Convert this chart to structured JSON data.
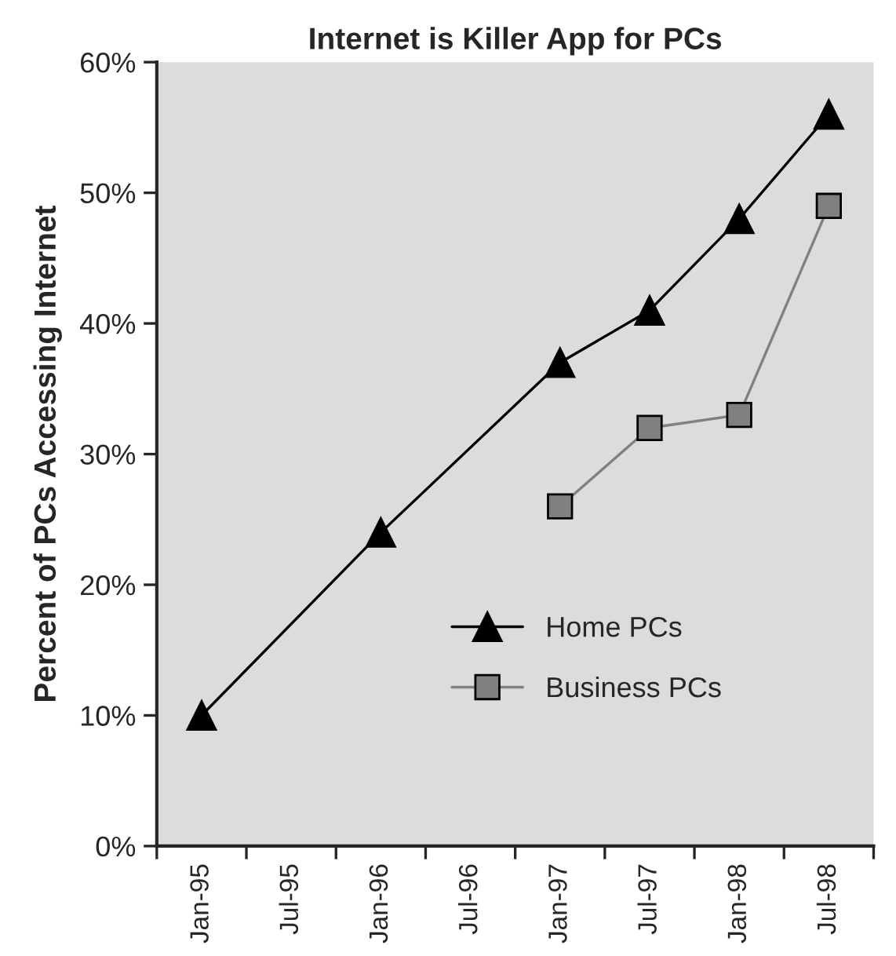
{
  "chart_data": {
    "type": "line",
    "title": "Internet is Killer App for PCs",
    "ylabel": "Percent of PCs Accessing Internet",
    "categories": [
      "Jan-95",
      "Jul-95",
      "Jan-96",
      "Jul-96",
      "Jan-97",
      "Jul-97",
      "Jan-98",
      "Jul-98"
    ],
    "series": [
      {
        "name": "Home PCs",
        "color": "#000000",
        "marker": "triangle",
        "values": [
          10,
          null,
          24,
          null,
          37,
          41,
          48,
          56
        ]
      },
      {
        "name": "Business PCs",
        "color": "#808080",
        "marker": "square",
        "values": [
          null,
          null,
          null,
          null,
          26,
          32,
          33,
          49
        ]
      }
    ],
    "ylim": [
      0,
      60
    ],
    "yticks": [
      {
        "value": 0,
        "label": "0%"
      },
      {
        "value": 10,
        "label": "10%"
      },
      {
        "value": 20,
        "label": "20%"
      },
      {
        "value": 30,
        "label": "30%"
      },
      {
        "value": 40,
        "label": "40%"
      },
      {
        "value": 50,
        "label": "50%"
      },
      {
        "value": 60,
        "label": "60%"
      }
    ],
    "grid": false,
    "legend": "bottom",
    "line_style": "solid"
  }
}
